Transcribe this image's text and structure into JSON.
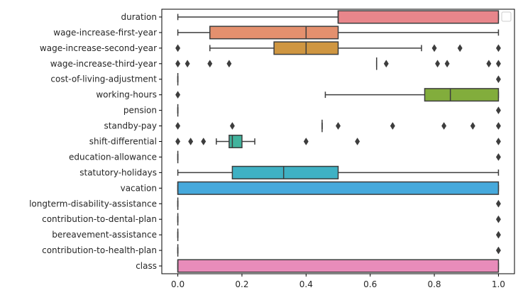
{
  "chart_data": {
    "type": "boxplot",
    "orientation": "horizontal",
    "xlim": [
      -0.05,
      1.05
    ],
    "x_ticks": [
      0.0,
      0.2,
      0.4,
      0.6,
      0.8,
      1.0
    ],
    "x_tick_labels": [
      "0.0",
      "0.2",
      "0.4",
      "0.6",
      "0.8",
      "1.0"
    ],
    "title": "",
    "xlabel": "",
    "ylabel": "",
    "grid": false,
    "legend": {
      "placement": "top-right",
      "entries": []
    },
    "categories": [
      "duration",
      "wage-increase-first-year",
      "wage-increase-second-year",
      "wage-increase-third-year",
      "cost-of-living-adjustment",
      "working-hours",
      "pension",
      "standby-pay",
      "shift-differential",
      "education-allowance",
      "statutory-holidays",
      "vacation",
      "longterm-disability-assistance",
      "contribution-to-dental-plan",
      "bereavement-assistance",
      "contribution-to-health-plan",
      "class"
    ],
    "boxes": [
      {
        "category": "duration",
        "color": "#e8868b",
        "whisker_low": 0.0,
        "q1": 0.5,
        "median": 0.5,
        "q3": 1.0,
        "whisker_high": 1.0,
        "outliers": []
      },
      {
        "category": "wage-increase-first-year",
        "color": "#e4906e",
        "whisker_low": 0.0,
        "q1": 0.1,
        "median": 0.4,
        "q3": 0.5,
        "whisker_high": 1.0,
        "outliers": []
      },
      {
        "category": "wage-increase-second-year",
        "color": "#cf9641",
        "whisker_low": 0.1,
        "q1": 0.3,
        "median": 0.4,
        "q3": 0.5,
        "whisker_high": 0.76,
        "outliers": [
          0.0,
          0.8,
          0.88,
          1.0
        ]
      },
      {
        "category": "wage-increase-third-year",
        "color": "#b7a240",
        "whisker_low": 0.62,
        "q1": 0.62,
        "median": 0.62,
        "q3": 0.62,
        "whisker_high": 0.62,
        "outliers": [
          0.0,
          0.03,
          0.1,
          0.16,
          0.65,
          0.81,
          0.84,
          0.97,
          1.0
        ]
      },
      {
        "category": "cost-of-living-adjustment",
        "color": "#9ea63d",
        "whisker_low": 0.0,
        "q1": 0.0,
        "median": 0.0,
        "q3": 0.0,
        "whisker_high": 0.0,
        "outliers": [
          1.0
        ]
      },
      {
        "category": "working-hours",
        "color": "#82ad3c",
        "whisker_low": 0.46,
        "q1": 0.77,
        "median": 0.85,
        "q3": 1.0,
        "whisker_high": 1.0,
        "outliers": [
          0.0
        ]
      },
      {
        "category": "pension",
        "color": "#4cb04e",
        "whisker_low": 0.0,
        "q1": 0.0,
        "median": 0.0,
        "q3": 0.0,
        "whisker_high": 0.0,
        "outliers": [
          1.0
        ]
      },
      {
        "category": "standby-pay",
        "color": "#42b37d",
        "whisker_low": 0.45,
        "q1": 0.45,
        "median": 0.45,
        "q3": 0.45,
        "whisker_high": 0.45,
        "outliers": [
          0.0,
          0.17,
          0.5,
          0.67,
          0.83,
          0.92,
          1.0
        ]
      },
      {
        "category": "shift-differential",
        "color": "#41b39d",
        "whisker_low": 0.12,
        "q1": 0.16,
        "median": 0.17,
        "q3": 0.2,
        "whisker_high": 0.24,
        "outliers": [
          0.0,
          0.04,
          0.08,
          0.4,
          0.56,
          1.0
        ]
      },
      {
        "category": "education-allowance",
        "color": "#41b3b3",
        "whisker_low": 0.0,
        "q1": 0.0,
        "median": 0.0,
        "q3": 0.0,
        "whisker_high": 0.0,
        "outliers": [
          1.0
        ]
      },
      {
        "category": "statutory-holidays",
        "color": "#3fb1c4",
        "whisker_low": 0.0,
        "q1": 0.17,
        "median": 0.33,
        "q3": 0.5,
        "whisker_high": 1.0,
        "outliers": []
      },
      {
        "category": "vacation",
        "color": "#46a9dc",
        "whisker_low": 0.0,
        "q1": 0.0,
        "median": 0.0,
        "q3": 1.0,
        "whisker_high": 1.0,
        "outliers": []
      },
      {
        "category": "longterm-disability-assistance",
        "color": "#8ea4ea",
        "whisker_low": 0.0,
        "q1": 0.0,
        "median": 0.0,
        "q3": 0.0,
        "whisker_high": 0.0,
        "outliers": [
          1.0
        ]
      },
      {
        "category": "contribution-to-dental-plan",
        "color": "#b48ee7",
        "whisker_low": 0.0,
        "q1": 0.0,
        "median": 0.0,
        "q3": 0.0,
        "whisker_high": 0.0,
        "outliers": [
          1.0
        ]
      },
      {
        "category": "bereavement-assistance",
        "color": "#dc8ae3",
        "whisker_low": 0.0,
        "q1": 0.0,
        "median": 0.0,
        "q3": 0.0,
        "whisker_high": 0.0,
        "outliers": [
          1.0
        ]
      },
      {
        "category": "contribution-to-health-plan",
        "color": "#e98ad0",
        "whisker_low": 0.0,
        "q1": 0.0,
        "median": 0.0,
        "q3": 0.0,
        "whisker_high": 0.0,
        "outliers": [
          1.0
        ]
      },
      {
        "category": "class",
        "color": "#e88cba",
        "whisker_low": 0.0,
        "q1": 0.0,
        "median": 0.0,
        "q3": 1.0,
        "whisker_high": 1.0,
        "outliers": []
      }
    ]
  }
}
